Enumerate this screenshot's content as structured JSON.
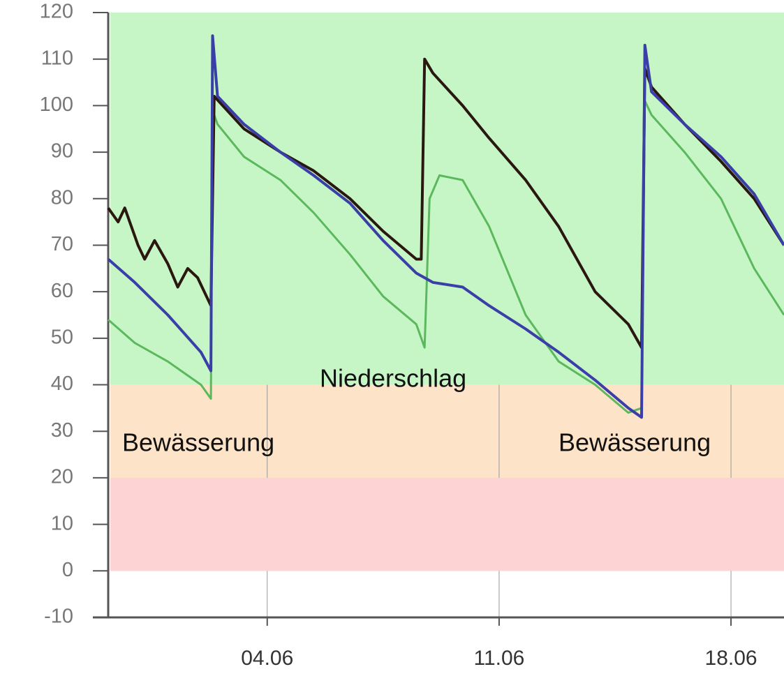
{
  "chart_data": {
    "type": "line",
    "xlim": [
      -0.8,
      19.6
    ],
    "xticks": [
      {
        "value": 4,
        "label": "04.06"
      },
      {
        "value": 11,
        "label": "11.06"
      },
      {
        "value": 18,
        "label": "18.06"
      }
    ],
    "ylim": [
      -10,
      120
    ],
    "yticks": [
      -10,
      0,
      10,
      20,
      30,
      40,
      50,
      60,
      70,
      80,
      90,
      100,
      110,
      120
    ],
    "grid": true,
    "bands": [
      {
        "from": 40,
        "to": 120,
        "color": "#c6f6c6"
      },
      {
        "from": 20,
        "to": 40,
        "color": "#fde3c8"
      },
      {
        "from": 0,
        "to": 20,
        "color": "#fdd3d3"
      }
    ],
    "annotations": [
      "Bewässerung",
      "Niederschlag",
      "Bewässerung"
    ],
    "series": [
      {
        "color": "#5cb85c",
        "x": [
          -0.8,
          0,
          1.0,
          2.0,
          2.3,
          2.35,
          2.5,
          3.3,
          4.4,
          5.4,
          6.5,
          7.5,
          8.5,
          8.75,
          8.9,
          9.2,
          9.9,
          10.7,
          11.8,
          12.8,
          13.9,
          14.9,
          15.3,
          15.4,
          15.6,
          16.6,
          17.7,
          18.7,
          19.6
        ],
        "values": [
          54,
          49,
          45,
          40,
          37,
          99,
          96,
          89,
          84,
          77,
          68,
          59,
          53,
          48,
          80,
          85,
          84,
          74,
          55,
          45,
          40,
          34,
          35,
          101,
          98,
          90,
          80,
          65,
          55
        ]
      },
      {
        "color": "#2a1810",
        "x": [
          -0.8,
          -0.5,
          -0.3,
          0.1,
          0.3,
          0.6,
          1.0,
          1.3,
          1.6,
          1.9,
          2.3,
          2.4,
          3.3,
          4.4,
          5.4,
          6.5,
          7.5,
          8.5,
          8.65,
          8.75,
          9.0,
          9.9,
          10.7,
          11.8,
          12.8,
          13.9,
          14.9,
          15.3,
          15.4,
          15.6,
          16.6,
          17.7,
          18.7,
          19.6
        ],
        "values": [
          78,
          75,
          78,
          70,
          67,
          71,
          66,
          61,
          65,
          63,
          57,
          102,
          95,
          90,
          86,
          80,
          73,
          67,
          67,
          110,
          107,
          100,
          93,
          84,
          74,
          60,
          53,
          48,
          108,
          104,
          96,
          88,
          80,
          70
        ]
      },
      {
        "color": "#3a3fa8",
        "x": [
          -0.8,
          0,
          1.0,
          2.0,
          2.3,
          2.35,
          2.5,
          3.3,
          4.4,
          5.4,
          6.5,
          7.5,
          8.5,
          9.0,
          9.9,
          10.7,
          11.8,
          12.8,
          13.9,
          14.9,
          15.3,
          15.4,
          15.6,
          16.6,
          17.7,
          18.7,
          19.6
        ],
        "values": [
          67,
          62,
          55,
          47,
          43,
          115,
          102,
          96,
          90,
          85,
          79,
          71,
          64,
          62,
          61,
          57,
          52,
          47,
          41,
          35,
          33,
          113,
          103,
          96,
          89,
          81,
          70
        ]
      }
    ]
  }
}
